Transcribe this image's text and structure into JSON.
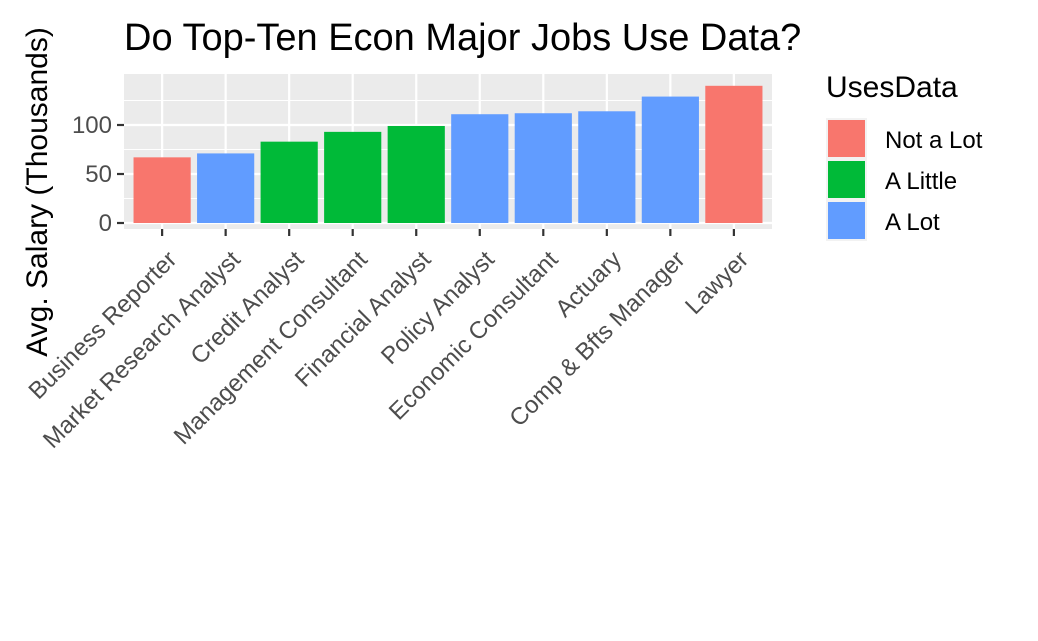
{
  "chart_data": {
    "type": "bar",
    "title": "Do Top-Ten Econ Major Jobs Use Data?",
    "xlabel": "",
    "ylabel": "Avg. Salary (Thousands)",
    "categories": [
      "Business Reporter",
      "Market Research Analyst",
      "Credit Analyst",
      "Management Consultant",
      "Financial Analyst",
      "Policy Analyst",
      "Economic Consultant",
      "Actuary",
      "Comp & Bfts Manager",
      "Lawyer"
    ],
    "values": [
      67,
      71,
      83,
      93,
      99,
      111,
      112,
      114,
      129,
      140
    ],
    "groups": [
      "Not a Lot",
      "A Lot",
      "A Little",
      "A Little",
      "A Little",
      "A Lot",
      "A Lot",
      "A Lot",
      "A Lot",
      "Not a Lot"
    ],
    "y_ticks": [
      0,
      50,
      100
    ],
    "ylim": [
      0,
      145
    ],
    "grid": true,
    "legend": {
      "title": "UsesData",
      "position": "right",
      "entries": [
        {
          "label": "Not a Lot",
          "color": "#F8766D"
        },
        {
          "label": "A Little",
          "color": "#00BA38"
        },
        {
          "label": "A Lot",
          "color": "#619CFF"
        }
      ]
    },
    "panel_background": "#EBEBEB",
    "grid_color": "#FFFFFF"
  }
}
